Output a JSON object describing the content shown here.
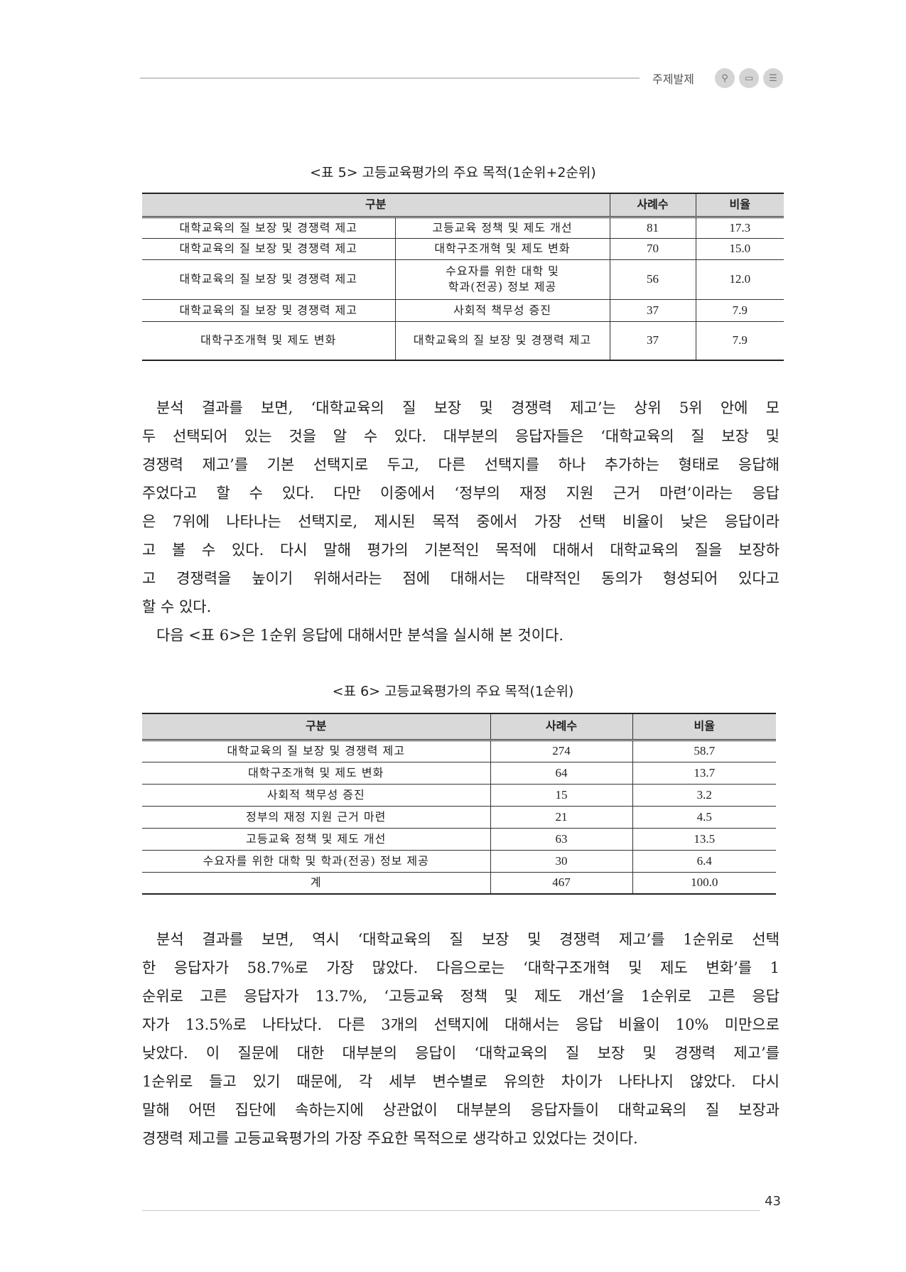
{
  "header": {
    "section_label": "주제발제",
    "icons": [
      "search-icon",
      "monitor-icon",
      "list-icon"
    ]
  },
  "table5": {
    "caption": "<표 5> 고등교육평가의 주요 목적(1순위+2순위)",
    "headers": [
      "구분",
      "사례수",
      "비율"
    ],
    "rows": [
      {
        "first": "대학교육의 질 보장 및 경쟁력 제고",
        "second": "고등교육 정책 및 제도 개선",
        "count": "81",
        "ratio": "17.3"
      },
      {
        "first": "대학교육의 질 보장 및 경쟁력 제고",
        "second": "대학구조개혁 및 제도 변화",
        "count": "70",
        "ratio": "15.0"
      },
      {
        "first": "대학교육의 질 보장 및 경쟁력 제고",
        "second": "수요자를 위한 대학 및 학과(전공) 정보 제공",
        "count": "56",
        "ratio": "12.0"
      },
      {
        "first": "대학교육의 질 보장 및 경쟁력 제고",
        "second": "사회적 책무성 증진",
        "count": "37",
        "ratio": "7.9"
      },
      {
        "first": "대학구조개혁 및 제도 변화",
        "second": "대학교육의 질 보장 및 경쟁력 제고",
        "count": "37",
        "ratio": "7.9"
      }
    ]
  },
  "paragraph1": {
    "lines": [
      "분석 결과를 보면, ‘대학교육의 질 보장 및 경쟁력 제고’는 상위 5위 안에 모",
      "두 선택되어 있는 것을 알 수 있다. 대부분의 응답자들은 ‘대학교육의 질 보장 및",
      "경쟁력 제고’를 기본 선택지로 두고, 다른 선택지를 하나 추가하는 형태로 응답해",
      "주었다고 할 수 있다. 다만 이중에서 ‘정부의 재정 지원 근거 마련’이라는 응답",
      "은 7위에 나타나는 선택지로, 제시된 목적 중에서 가장 선택 비율이 낮은 응답이라",
      "고 볼 수 있다. 다시 말해 평가의 기본적인 목적에 대해서 대학교육의 질을 보장하",
      "고 경쟁력을 높이기 위해서라는 점에 대해서는 대략적인 동의가 형성되어 있다고",
      "할 수 있다.",
      "다음 <표 6>은 1순위 응답에 대해서만 분석을 실시해 본 것이다."
    ]
  },
  "table6": {
    "caption": "<표 6> 고등교육평가의 주요 목적(1순위)",
    "headers": [
      "구분",
      "사례수",
      "비율"
    ],
    "rows": [
      {
        "label": "대학교육의 질 보장 및 경쟁력 제고",
        "count": "274",
        "ratio": "58.7"
      },
      {
        "label": "대학구조개혁 및 제도 변화",
        "count": "64",
        "ratio": "13.7"
      },
      {
        "label": "사회적 책무성 증진",
        "count": "15",
        "ratio": "3.2"
      },
      {
        "label": "정부의 재정 지원 근거 마련",
        "count": "21",
        "ratio": "4.5"
      },
      {
        "label": "고등교육 정책 및 제도 개선",
        "count": "63",
        "ratio": "13.5"
      },
      {
        "label": "수요자를 위한 대학 및 학과(전공) 정보 제공",
        "count": "30",
        "ratio": "6.4"
      },
      {
        "label": "계",
        "count": "467",
        "ratio": "100.0"
      }
    ]
  },
  "paragraph2": {
    "lines": [
      "분석 결과를 보면, 역시 ‘대학교육의 질 보장 및 경쟁력 제고’를 1순위로 선택",
      "한 응답자가 58.7%로 가장 많았다. 다음으로는 ‘대학구조개혁 및 제도 변화’를 1",
      "순위로 고른 응답자가 13.7%, ‘고등교육 정책 및 제도 개선’을 1순위로 고른 응답",
      "자가 13.5%로 나타났다. 다른 3개의 선택지에 대해서는 응답 비율이 10% 미만으로",
      "낮았다. 이 질문에 대한 대부분의 응답이 ‘대학교육의 질 보장 및 경쟁력 제고’를",
      "1순위로 들고 있기 때문에, 각 세부 변수별로 유의한 차이가 나타나지 않았다. 다시",
      "말해 어떤 집단에 속하는지에 상관없이 대부분의 응답자들이 대학교육의 질 보장과",
      "경쟁력 제고를 고등교육평가의 가장 주요한 목적으로 생각하고 있었다는 것이다."
    ]
  },
  "footer": {
    "page_number": "43"
  }
}
